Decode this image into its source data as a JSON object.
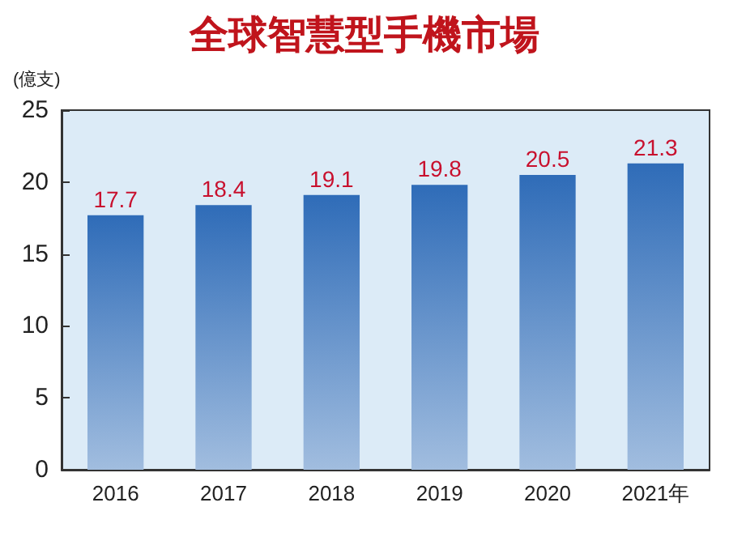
{
  "chart_data": {
    "type": "bar",
    "title": "全球智慧型手機市場",
    "ylabel": "(億支)",
    "categories": [
      "2016",
      "2017",
      "2018",
      "2019",
      "2020",
      "2021年"
    ],
    "values": [
      17.7,
      18.4,
      19.1,
      19.8,
      20.5,
      21.3
    ],
    "color": "#2f6cb8",
    "ylim": [
      0,
      25
    ],
    "yticks": [
      0,
      5,
      10,
      15,
      20,
      25
    ],
    "grid": false,
    "data_labels": true
  }
}
